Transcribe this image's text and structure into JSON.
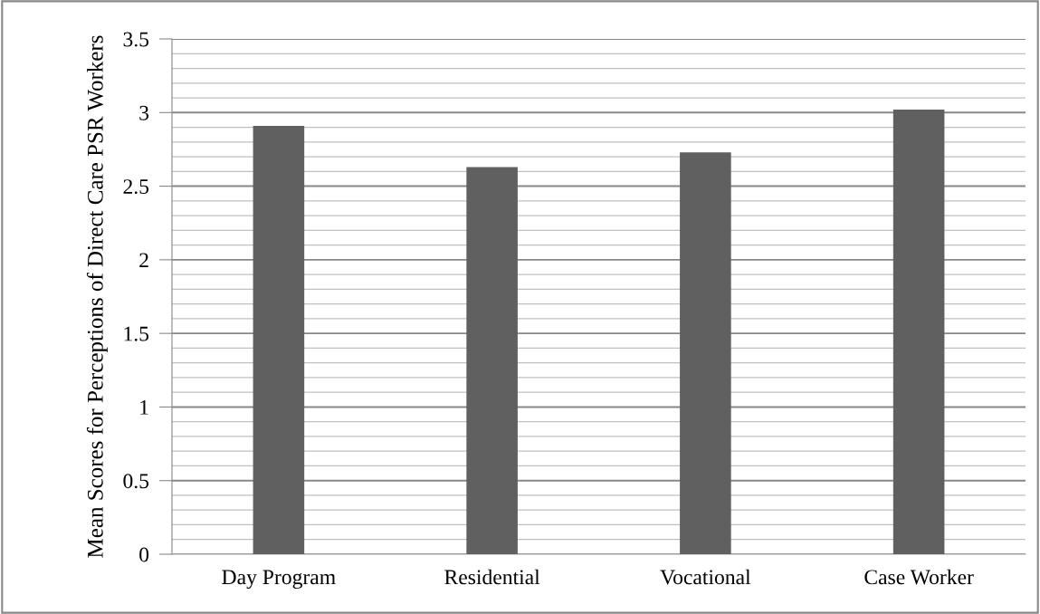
{
  "chart_data": {
    "type": "bar",
    "ylabel": "Mean Scores for Perceptions of Direct Care PSR Workers",
    "categories": [
      "Day Program",
      "Residential",
      "Vocational",
      "Case Worker"
    ],
    "values": [
      2.91,
      2.63,
      2.73,
      3.02
    ],
    "color": "#606060",
    "ylim": [
      0,
      3.5
    ],
    "yticks": [
      0,
      {
        "value": 0.1,
        "label": null
      },
      {
        "value": 0.2,
        "label": null
      },
      {
        "value": 0.3,
        "label": null
      },
      {
        "value": 0.4,
        "label": null
      },
      0.5,
      {
        "value": 0.6,
        "label": null
      },
      {
        "value": 0.7,
        "label": null
      },
      {
        "value": 0.8,
        "label": null
      },
      {
        "value": 0.9,
        "label": null
      },
      1,
      {
        "value": 1.1,
        "label": null
      },
      {
        "value": 1.2,
        "label": null
      },
      {
        "value": 1.3,
        "label": null
      },
      {
        "value": 1.4,
        "label": null
      },
      1.5,
      {
        "value": 1.6,
        "label": null
      },
      {
        "value": 1.7,
        "label": null
      },
      {
        "value": 1.8,
        "label": null
      },
      {
        "value": 1.9,
        "label": null
      },
      2,
      {
        "value": 2.1,
        "label": null
      },
      {
        "value": 2.2,
        "label": null
      },
      {
        "value": 2.3,
        "label": null
      },
      {
        "value": 2.4,
        "label": null
      },
      2.5,
      {
        "value": 2.6,
        "label": null
      },
      {
        "value": 2.7,
        "label": null
      },
      {
        "value": 2.8,
        "label": null
      },
      {
        "value": 2.9,
        "label": null
      },
      3,
      {
        "value": 3.1,
        "label": null
      },
      {
        "value": 3.2,
        "label": null
      },
      {
        "value": 3.3,
        "label": null
      },
      {
        "value": 3.4,
        "label": null
      },
      3.5
    ],
    "grid": "y",
    "legend": false
  }
}
